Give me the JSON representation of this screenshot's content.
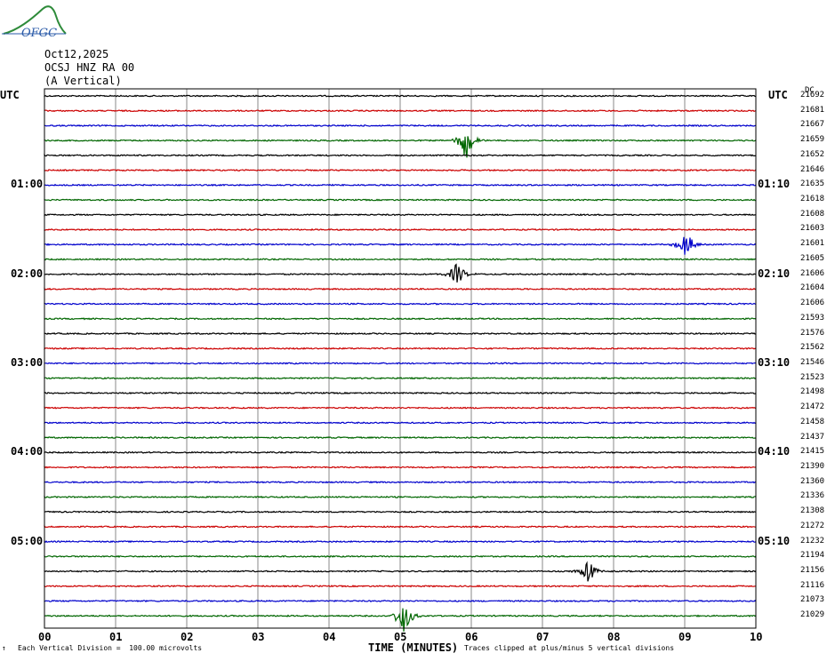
{
  "logo": {
    "text": "OFGC",
    "color": "#2a5aa8",
    "peak_color": "#2e8b3a"
  },
  "header": {
    "date": "Oct12,2025",
    "station": "OCSJ HNZ RA 00",
    "component": "(A Vertical)"
  },
  "left_axis_title": "UTC",
  "right_axis_title": "UTC",
  "dc_header": "DC",
  "left_time_labels": [
    "01:00",
    "02:00",
    "03:00",
    "04:00",
    "05:00"
  ],
  "right_time_labels": [
    "01:10",
    "02:10",
    "03:10",
    "04:10",
    "05:10"
  ],
  "footer": {
    "left_mark": "↑",
    "division": "Each Vertical Division =  100.00 microvolts",
    "xlabel": "TIME (MINUTES)",
    "clip_note": "Traces clipped at plus/minus 5 vertical divisions"
  },
  "chart_data": {
    "type": "line",
    "title": "OCSJ HNZ RA 00 (A Vertical) Oct12,2025",
    "xlabel": "TIME (MINUTES)",
    "ylabel": "UTC",
    "x_ticks": [
      "00",
      "01",
      "02",
      "03",
      "04",
      "05",
      "06",
      "07",
      "08",
      "09",
      "10"
    ],
    "xlim": [
      0,
      10
    ],
    "grid": true,
    "trace_colors": [
      "#000000",
      "#cc0000",
      "#0000cc",
      "#006600"
    ],
    "rows_per_hour": 6,
    "dc_offsets": [
      21692,
      21681,
      21667,
      21659,
      21652,
      21646,
      21635,
      21618,
      21608,
      21603,
      21601,
      21605,
      21606,
      21604,
      21606,
      21593,
      21576,
      21562,
      21546,
      21523,
      21498,
      21472,
      21458,
      21437,
      21415,
      21390,
      21360,
      21336,
      21308,
      21272,
      21232,
      21194,
      21156,
      21116,
      21073,
      21029
    ],
    "events": [
      {
        "row": 3,
        "minute": 5.93,
        "amplitude": 3.0
      },
      {
        "row": 10,
        "minute": 9.02,
        "amplitude": 2.0
      },
      {
        "row": 12,
        "minute": 5.8,
        "amplitude": 1.8
      },
      {
        "row": 32,
        "minute": 7.65,
        "amplitude": 1.8
      },
      {
        "row": 35,
        "minute": 5.05,
        "amplitude": 3.0
      }
    ]
  }
}
